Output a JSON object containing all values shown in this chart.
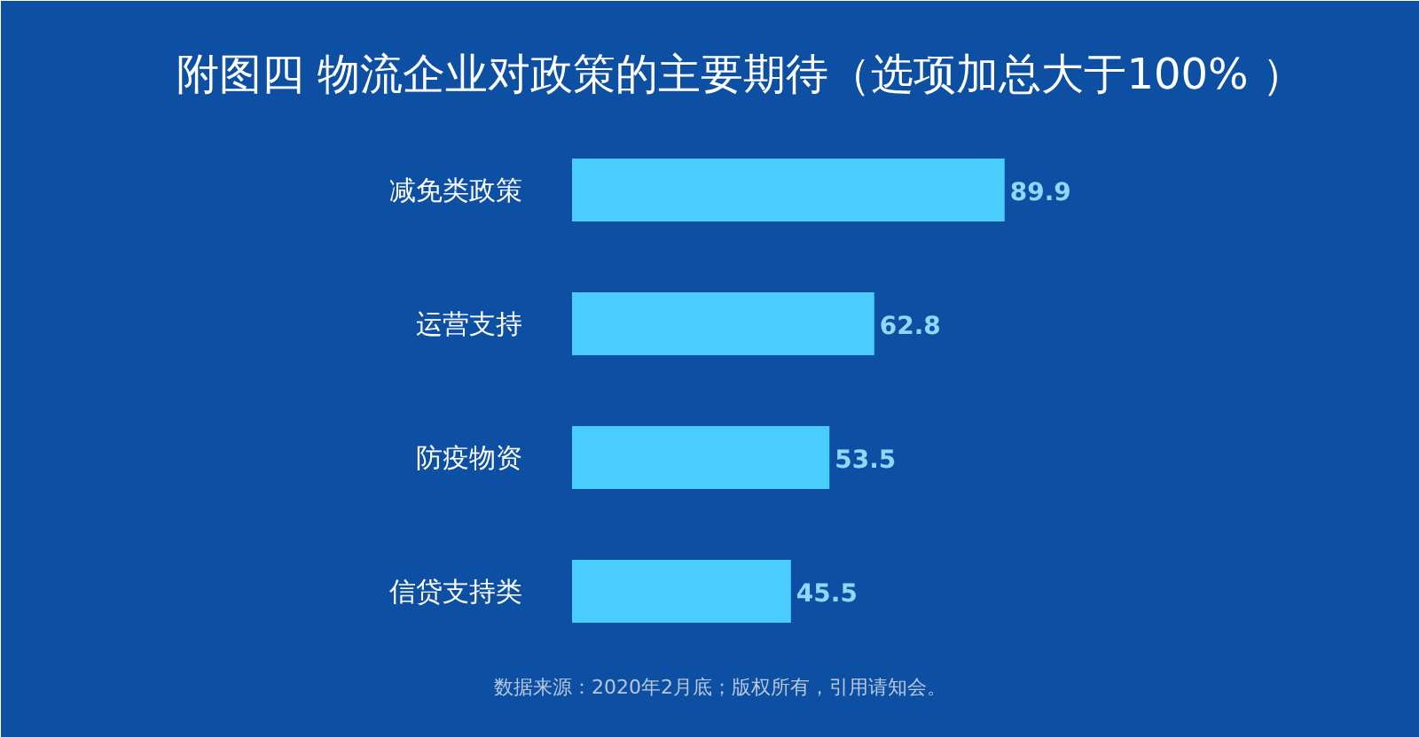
{
  "chart_data": {
    "type": "bar",
    "orientation": "horizontal",
    "title": "附图四 物流企业对政策的主要期待（选项加总大于100% ）",
    "categories": [
      "减免类政策",
      "运营支持",
      "防疫物资",
      "信贷支持类"
    ],
    "values": [
      89.9,
      62.8,
      53.5,
      45.5
    ],
    "color": "#48cdfd",
    "data_labels": true,
    "grid": false,
    "annotations": [
      "数据来源：2020年2月底；版权所有，引用请知会。"
    ]
  }
}
